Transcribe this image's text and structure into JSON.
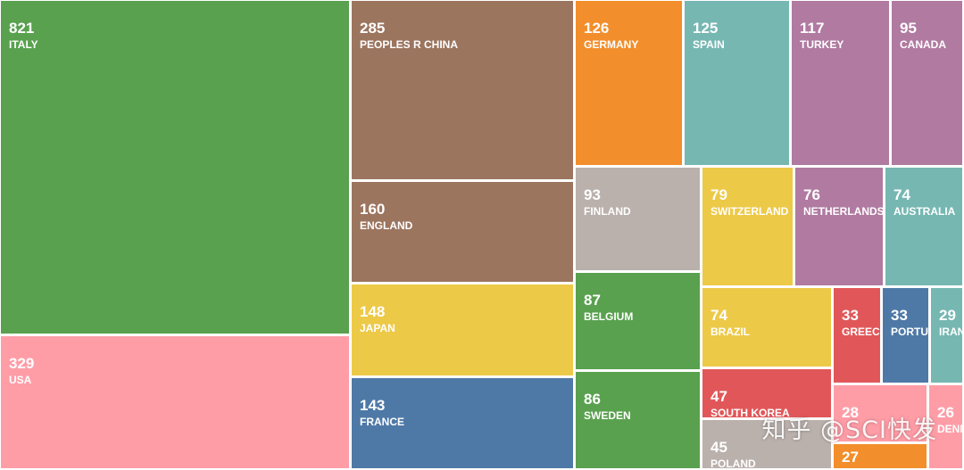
{
  "chart_data": {
    "type": "treemap",
    "palette": {
      "green": "#59a14f",
      "pink": "#ff9da7",
      "brown": "#9c755f",
      "yellow": "#edc948",
      "blue": "#4e79a7",
      "orange": "#f28e2b",
      "teal": "#76b7b2",
      "purple": "#b07aa1",
      "grey": "#bab0ac",
      "red": "#e15759"
    },
    "items": [
      {
        "label": "ITALY",
        "value": 821,
        "color": "green"
      },
      {
        "label": "USA",
        "value": 329,
        "color": "pink"
      },
      {
        "label": "PEOPLES R CHINA",
        "value": 285,
        "color": "brown"
      },
      {
        "label": "ENGLAND",
        "value": 160,
        "color": "brown"
      },
      {
        "label": "JAPAN",
        "value": 148,
        "color": "yellow"
      },
      {
        "label": "FRANCE",
        "value": 143,
        "color": "blue"
      },
      {
        "label": "GERMANY",
        "value": 126,
        "color": "orange"
      },
      {
        "label": "SPAIN",
        "value": 125,
        "color": "teal"
      },
      {
        "label": "TURKEY",
        "value": 117,
        "color": "purple"
      },
      {
        "label": "CANADA",
        "value": 95,
        "color": "purple"
      },
      {
        "label": "FINLAND",
        "value": 93,
        "color": "grey"
      },
      {
        "label": "SWITZERLAND",
        "value": 79,
        "color": "yellow"
      },
      {
        "label": "NETHERLANDS",
        "value": 76,
        "color": "purple"
      },
      {
        "label": "AUSTRALIA",
        "value": 74,
        "color": "teal"
      },
      {
        "label": "BELGIUM",
        "value": 87,
        "color": "green"
      },
      {
        "label": "SWEDEN",
        "value": 86,
        "color": "green"
      },
      {
        "label": "BRAZIL",
        "value": 74,
        "color": "yellow"
      },
      {
        "label": "GREECE",
        "value": 33,
        "color": "red"
      },
      {
        "label": "PORTUGAL",
        "value": 33,
        "color": "blue"
      },
      {
        "label": "IRAN",
        "value": 29,
        "color": "teal"
      },
      {
        "label": "SOUTH KOREA",
        "value": 47,
        "color": "red"
      },
      {
        "label": "POLAND",
        "value": 45,
        "color": "grey"
      },
      {
        "label": "",
        "value": 28,
        "color": "pink"
      },
      {
        "label": "DENMARK",
        "value": 26,
        "color": "pink"
      },
      {
        "label": "",
        "value": 27,
        "color": "orange"
      }
    ]
  },
  "watermark": "知乎 @SCI快发"
}
